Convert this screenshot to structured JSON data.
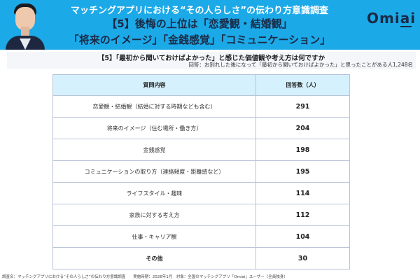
{
  "header": {
    "title_line1": "マッチングアプリにおける“その人らしさ”の伝わり方意識調査",
    "title_line2": "【5】後悔の上位は「恋愛観・結婚観」",
    "title_line3": "「将来のイメージ」「金銭感覚」「コミュニケーション」",
    "logo": "Omiai",
    "background_color": "#1ca9e8",
    "accent_text_color": "#1b2a45"
  },
  "subheader": {
    "question": "【5】「最初から聞いておけばよかった」と感じた価値観や考え方は何ですか",
    "respondents": "回答：お別れした後になって「最初から聞いておけばよかった」と思ったことがある人1,248名"
  },
  "table": {
    "headers": [
      "質問内容",
      "回答数（人）"
    ],
    "rows": [
      {
        "label": "恋愛観・結婚観（結婚に対する時期なども含む）",
        "count": "291"
      },
      {
        "label": "将来のイメージ（住む場所・働き方）",
        "count": "204"
      },
      {
        "label": "金銭感覚",
        "count": "198"
      },
      {
        "label": "コミュニケーションの取り方（連絡頻度・距離感など）",
        "count": "195"
      },
      {
        "label": "ライフスタイル・趣味",
        "count": "114"
      },
      {
        "label": "家族に対する考え方",
        "count": "112"
      },
      {
        "label": "仕事・キャリア観",
        "count": "104"
      },
      {
        "label": "その他",
        "count": "30"
      }
    ],
    "header_bg": "#d4f1fd",
    "border_color": "#b9c4d8"
  },
  "footer": {
    "text": "調査名：マッチングアプリにおける“その人らしさ”の伝わり方意識調査　　実施時期：2026年1月　対象：全国のマッチングアプリ「Omiai」ユーザー（全員独身）"
  }
}
